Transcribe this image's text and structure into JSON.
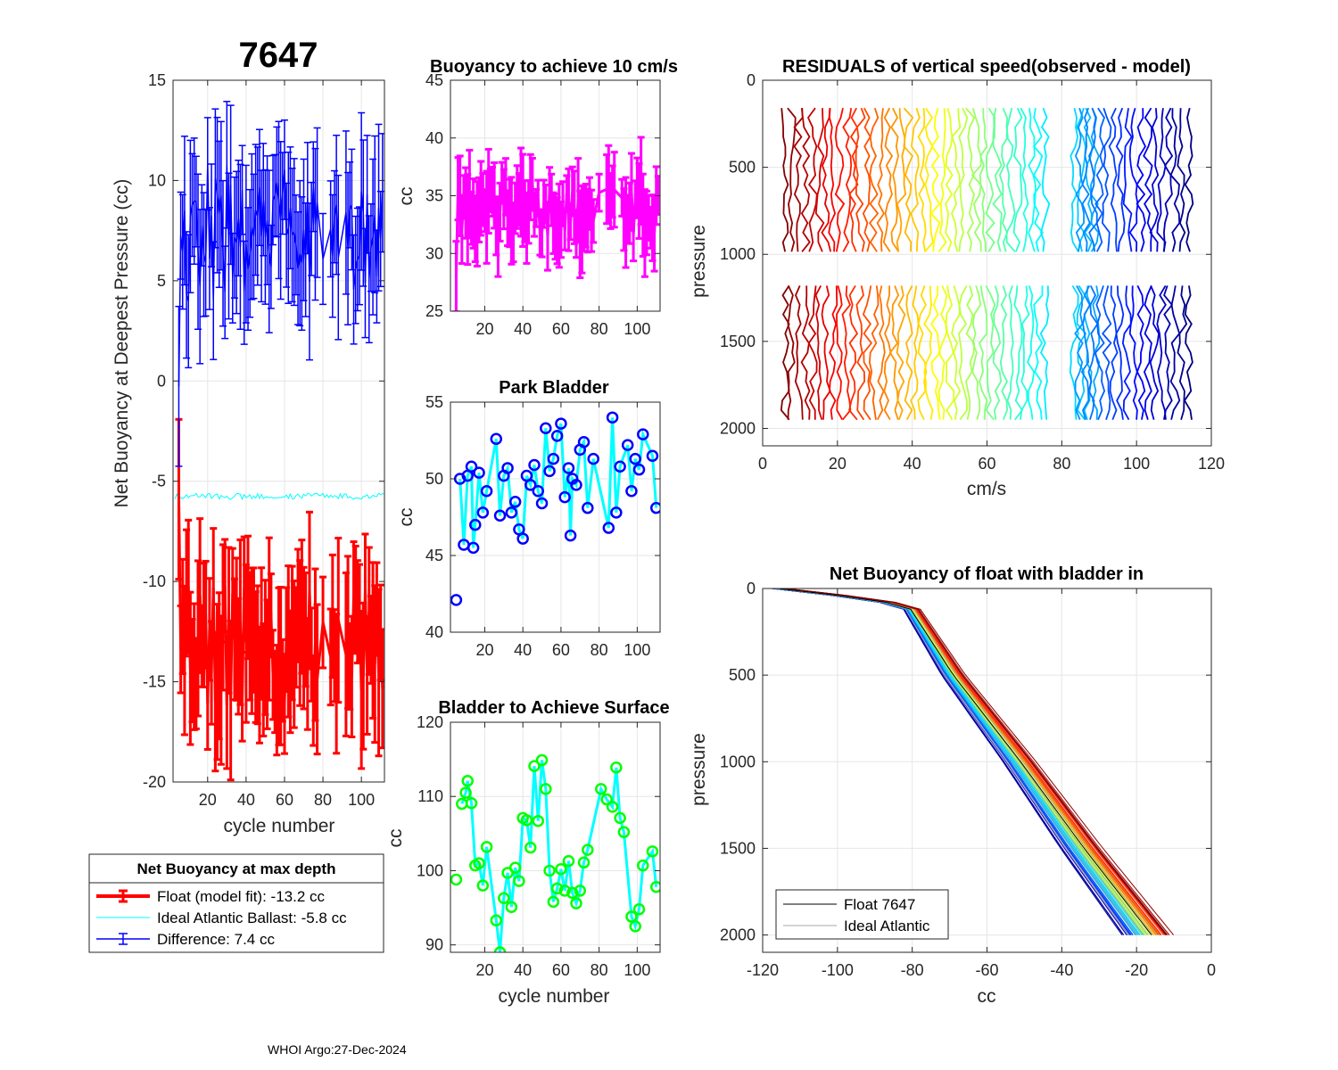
{
  "footer": "WHOI Argo:27-Dec-2024",
  "colors": {
    "red": "#ff0000",
    "blue": "#0000ff",
    "cyan": "#00ffff",
    "magenta": "#ff00ff",
    "green": "#00ff00",
    "grid": "#e6e6e6",
    "axis": "#262626"
  },
  "chart_data": [
    {
      "id": "net_buoyancy",
      "type": "errorbar",
      "title": "7647",
      "xlabel": "cycle number",
      "ylabel": "Net Buoyancy at Deepest Pressure (cc)",
      "xlim": [
        2,
        112
      ],
      "ylim": [
        -20,
        15
      ],
      "xticks": [
        "20",
        "40",
        "60",
        "80",
        "100"
      ],
      "yticks": [
        "-20",
        "-15",
        "-10",
        "-5",
        "0",
        "5",
        "10",
        "15"
      ],
      "legend": {
        "title": "Net Buoyancy at max depth",
        "entries": [
          "Float (model fit): -13.2 cc",
          "Ideal Atlantic Ballast:  -5.8 cc",
          "Difference:   7.4 cc"
        ]
      },
      "series": [
        {
          "name": "Float (model fit)",
          "color": "red",
          "mean": -13.2,
          "ideal": -5.8
        },
        {
          "name": "Ideal Atlantic Ballast",
          "color": "cyan",
          "value": -5.8
        },
        {
          "name": "Difference",
          "color": "blue",
          "mean": 7.4
        }
      ]
    },
    {
      "id": "buoyancy_speed",
      "type": "errorbar",
      "title": "Buoyancy to achieve 10 cm/s",
      "ylabel": "cc",
      "xlim": [
        2,
        112
      ],
      "ylim": [
        25,
        45
      ],
      "xticks": [
        "20",
        "40",
        "60",
        "80",
        "100"
      ],
      "yticks": [
        "25",
        "30",
        "35",
        "40",
        "45"
      ],
      "series": [
        {
          "name": "buoyancy",
          "color": "magenta",
          "mean": 33.5
        }
      ]
    },
    {
      "id": "park_bladder",
      "type": "line",
      "title": "Park Bladder",
      "ylabel": "cc",
      "xlim": [
        2,
        112
      ],
      "ylim": [
        40,
        55
      ],
      "xticks": [
        "20",
        "40",
        "60",
        "80",
        "100"
      ],
      "yticks": [
        "40",
        "45",
        "50",
        "55"
      ],
      "x": [
        5,
        7,
        9,
        11,
        13,
        14,
        15,
        17,
        19,
        21,
        26,
        28,
        30,
        32,
        34,
        36,
        38,
        40,
        42,
        44,
        46,
        48,
        50,
        52,
        54,
        56,
        58,
        60,
        62,
        64,
        65,
        66,
        68,
        70,
        72,
        74,
        77,
        85,
        87,
        89,
        91,
        95,
        97,
        99,
        101,
        103,
        108,
        110
      ],
      "y": [
        42.1,
        50,
        45.7,
        50.2,
        50.8,
        45.5,
        47,
        50.4,
        47.8,
        49.2,
        52.6,
        47.6,
        50.2,
        50.7,
        47.8,
        48.5,
        46.7,
        46.1,
        50.2,
        49.6,
        50.9,
        49.2,
        48.4,
        53.3,
        50.5,
        51.3,
        52.8,
        53.6,
        48.8,
        50.7,
        46.3,
        50,
        49.6,
        51.9,
        52.4,
        48.1,
        51.3,
        46.8,
        54,
        47.8,
        50.8,
        52.2,
        49.2,
        51.3,
        50.6,
        52.9,
        51.5,
        48.1
      ]
    },
    {
      "id": "bladder_surface",
      "type": "line",
      "title": "Bladder to Achieve Surface",
      "xlabel": "cycle number",
      "ylabel": "cc",
      "xlim": [
        2,
        112
      ],
      "ylim": [
        89,
        120
      ],
      "xticks": [
        "20",
        "40",
        "60",
        "80",
        "100"
      ],
      "yticks": [
        "90",
        "100",
        "110",
        "120"
      ],
      "x": [
        5,
        8,
        10,
        11,
        13,
        15,
        17,
        19,
        21,
        26,
        28,
        30,
        32,
        34,
        36,
        38,
        40,
        42,
        44,
        46,
        48,
        50,
        52,
        54,
        56,
        58,
        60,
        62,
        64,
        66,
        68,
        70,
        72,
        74,
        81,
        84,
        87,
        89,
        91,
        93,
        97,
        99,
        101,
        103,
        108,
        110
      ],
      "y": [
        98.8,
        109,
        110.5,
        112.1,
        109.1,
        100.7,
        101,
        98,
        103.2,
        93.3,
        89,
        96.3,
        99.7,
        95.1,
        100.4,
        98.6,
        107.1,
        106.8,
        103.1,
        114.1,
        106.7,
        114.9,
        111,
        100,
        95.8,
        97.6,
        100.2,
        97.3,
        101.3,
        97,
        95.6,
        97.3,
        101.1,
        102.8,
        111,
        109.6,
        108.6,
        113.9,
        107.1,
        105.2,
        93.8,
        92.5,
        94.8,
        100.7,
        102.6,
        97.8
      ]
    },
    {
      "id": "residuals",
      "type": "line",
      "title": "RESIDUALS of vertical speed(observed - model)",
      "xlabel": "cm/s",
      "ylabel": "pressure",
      "xlim": [
        0,
        120
      ],
      "ylim": [
        2100,
        0
      ],
      "xticks": [
        "0",
        "20",
        "40",
        "60",
        "80",
        "100",
        "120"
      ],
      "yticks": [
        "0",
        "500",
        "1000",
        "1500",
        "2000"
      ],
      "pressure_ranges": [
        [
          160,
          1000
        ],
        [
          1180,
          2000
        ]
      ],
      "offset_range": [
        6,
        114
      ]
    },
    {
      "id": "net_buoyancy_bladder_in",
      "type": "line",
      "title": "Net Buoyancy of float with bladder in",
      "xlabel": "cc",
      "ylabel": "pressure",
      "xlim": [
        -120,
        0
      ],
      "ylim": [
        2100,
        0
      ],
      "xticks": [
        "-120",
        "-100",
        "-80",
        "-60",
        "-40",
        "-20",
        "0"
      ],
      "yticks": [
        "0",
        "500",
        "1000",
        "1500",
        "2000"
      ],
      "legend": {
        "entries": [
          "Float 7647",
          "Ideal Atlantic"
        ]
      },
      "reference_profile": {
        "pressure": [
          0,
          50,
          100,
          500,
          1000,
          1500,
          2000
        ],
        "cc": [
          -115,
          -95,
          -80,
          -68,
          -50,
          -33,
          -15
        ]
      }
    }
  ]
}
